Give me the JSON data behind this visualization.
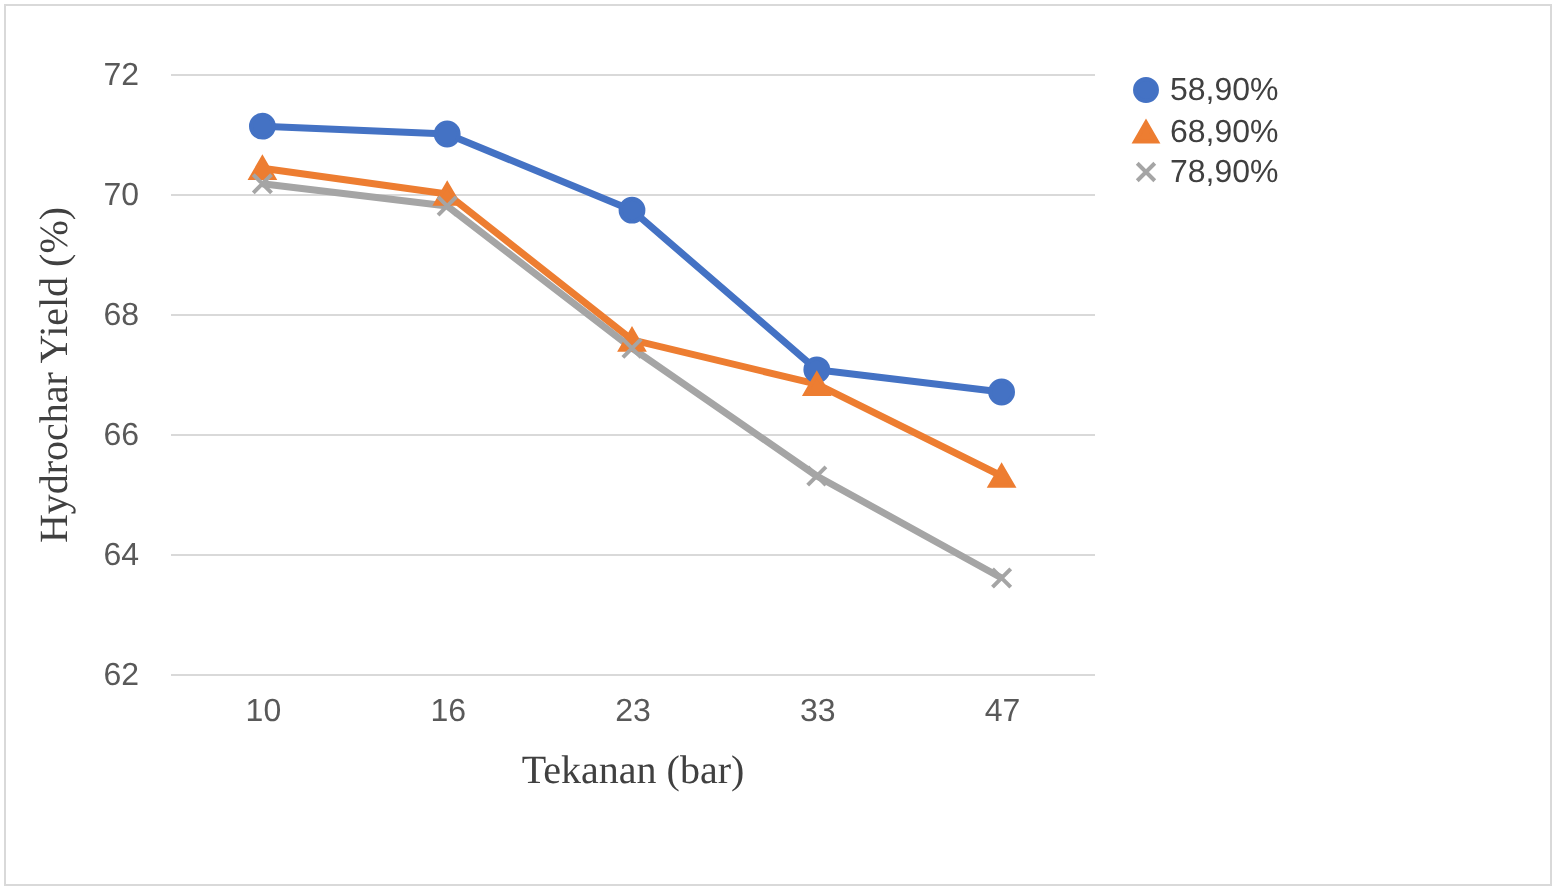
{
  "chart_data": {
    "type": "line",
    "xlabel": "Tekanan (bar)",
    "ylabel": "Hydrochar Yield (%)",
    "categories": [
      "10",
      "16",
      "23",
      "33",
      "47"
    ],
    "series": [
      {
        "name": "58,90%",
        "color": "#4472c4",
        "marker": "circle",
        "values": [
          71.13,
          71.0,
          69.73,
          67.07,
          66.7
        ]
      },
      {
        "name": "68,90%",
        "color": "#ed7d31",
        "marker": "triangle",
        "values": [
          70.43,
          70.0,
          67.57,
          66.83,
          65.3
        ]
      },
      {
        "name": "78,90%",
        "color": "#a5a5a5",
        "marker": "cross",
        "values": [
          70.17,
          69.8,
          67.43,
          65.3,
          63.6
        ]
      }
    ],
    "ylim": [
      62,
      72
    ],
    "yticks": [
      62,
      64,
      66,
      68,
      70,
      72
    ],
    "grid": "y",
    "legend": "right",
    "line_style": "solid"
  }
}
